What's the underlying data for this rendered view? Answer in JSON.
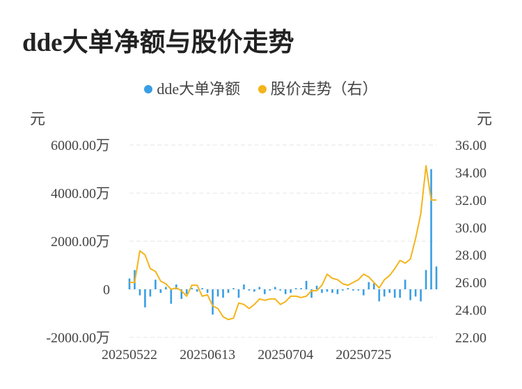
{
  "title": "dde大单净额与股价走势",
  "colors": {
    "bar": "#3a9ee4",
    "line": "#f4b41a",
    "grid": "#e6e6e6",
    "axis_text": "#444444"
  },
  "chart_data": {
    "type": "bar+line",
    "legend": [
      {
        "name": "dde大单净额",
        "color": "#3a9ee4"
      },
      {
        "name": "股价走势（右）",
        "color": "#f4b41a"
      }
    ],
    "y_left": {
      "unit": "元",
      "min": -2000,
      "max": 6000,
      "ticks": [
        -2000,
        0,
        2000,
        4000,
        6000
      ],
      "tick_labels": [
        "-2000.00万",
        "0",
        "2000.00万",
        "4000.00万",
        "6000.00万"
      ]
    },
    "y_right": {
      "unit": "元",
      "min": 22,
      "max": 36,
      "ticks": [
        22,
        24,
        26,
        28,
        30,
        32,
        34,
        36
      ],
      "tick_labels": [
        "22.00",
        "24.00",
        "26.00",
        "28.00",
        "30.00",
        "32.00",
        "34.00",
        "36.00"
      ]
    },
    "x_tick_labels": [
      "20250522",
      "20250613",
      "20250704",
      "20250725"
    ],
    "x_tick_index": [
      0,
      15,
      30,
      45
    ],
    "grid": true,
    "series": [
      {
        "name": "dde大单净额",
        "type": "bar",
        "axis": "left",
        "values": [
          450,
          800,
          -250,
          -750,
          -300,
          400,
          -150,
          100,
          -600,
          200,
          -400,
          -200,
          50,
          -100,
          50,
          -150,
          -1050,
          -300,
          -350,
          -150,
          50,
          -350,
          200,
          -50,
          -100,
          100,
          -200,
          -50,
          100,
          -50,
          -200,
          -150,
          50,
          50,
          350,
          -350,
          150,
          -150,
          -100,
          -150,
          -200,
          -50,
          50,
          -50,
          -50,
          -250,
          300,
          250,
          -500,
          -300,
          -150,
          -350,
          -350,
          400,
          -450,
          -300,
          -500,
          800,
          5000,
          950
        ]
      },
      {
        "name": "股价走势（右）",
        "type": "line",
        "axis": "right",
        "values": [
          26.0,
          26.0,
          28.3,
          28.0,
          27.0,
          26.8,
          26.1,
          25.9,
          25.5,
          25.6,
          25.4,
          25.0,
          25.8,
          25.8,
          25.0,
          25.1,
          24.3,
          24.1,
          23.5,
          23.3,
          23.4,
          24.5,
          24.4,
          24.1,
          24.4,
          24.8,
          24.7,
          24.8,
          24.8,
          24.4,
          24.6,
          25.0,
          25.0,
          24.9,
          25.0,
          25.4,
          25.4,
          25.8,
          26.6,
          26.3,
          26.2,
          25.9,
          25.8,
          26.0,
          26.2,
          26.6,
          26.4,
          26.0,
          25.6,
          26.2,
          26.5,
          27.0,
          27.6,
          27.4,
          27.7,
          29.2,
          31.0,
          34.5,
          32.0,
          32.0
        ]
      }
    ]
  }
}
